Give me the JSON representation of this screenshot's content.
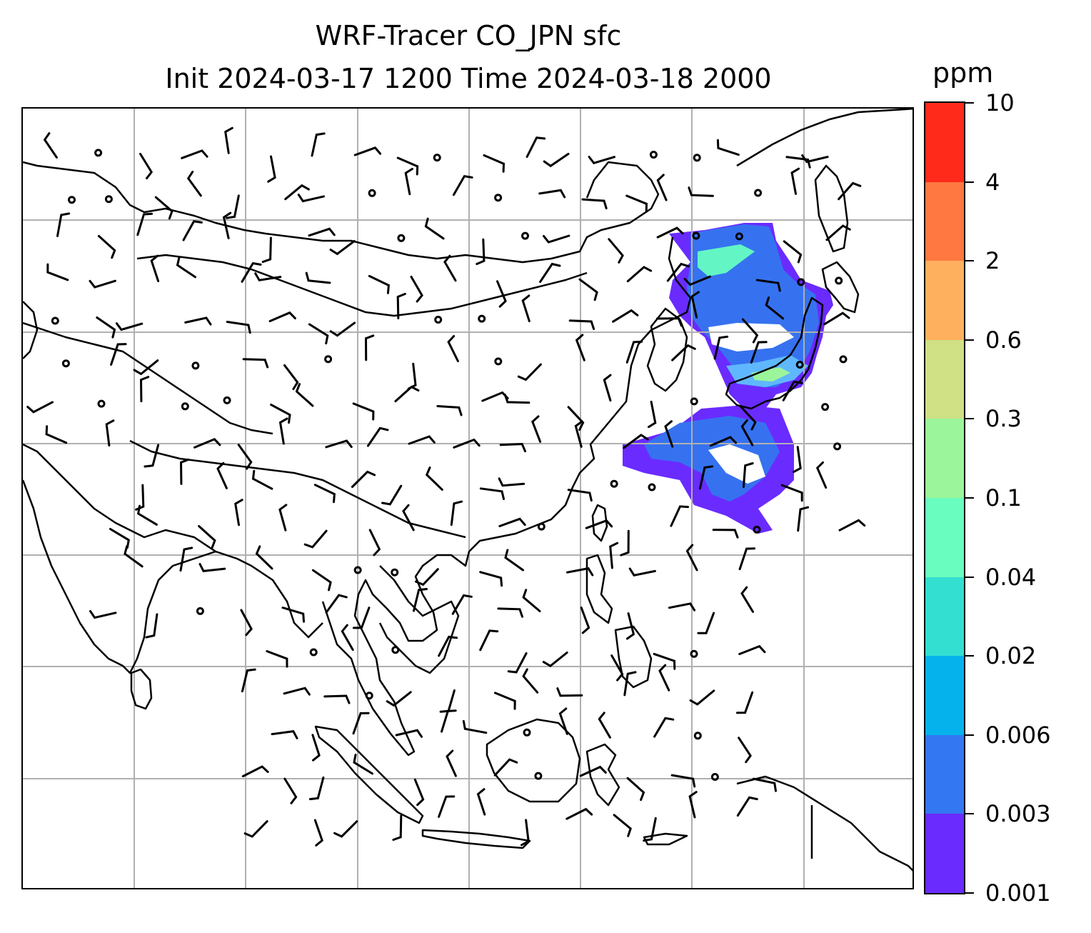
{
  "title": {
    "line1": "WRF-Tracer CO_JPN sfc",
    "line2": "Init 2024-03-17 1200 Time 2024-03-18 2000"
  },
  "map": {
    "region": "East and Southeast Asia",
    "variable": "CO_JPN surface tracer concentration with wind barbs",
    "gridlines": true,
    "plume_colors": [
      "#6a2bff",
      "#3672f0",
      "#5fb8ff",
      "#63f6c4",
      "#9bf59a"
    ]
  },
  "colorbar": {
    "unit": "ppm",
    "levels": [
      "0.001",
      "0.003",
      "0.006",
      "0.02",
      "0.04",
      "0.1",
      "0.3",
      "0.6",
      "2",
      "4",
      "10"
    ],
    "colors": [
      "#6a2bff",
      "#3477f2",
      "#06b2ec",
      "#33dfd0",
      "#6afdc0",
      "#9bf59a",
      "#cfe085",
      "#ffb05f",
      "#ff7841",
      "#ff2a1a"
    ]
  }
}
